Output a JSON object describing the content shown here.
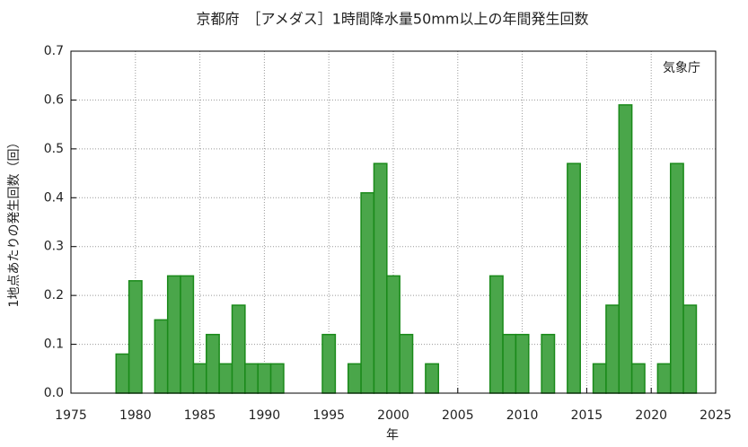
{
  "chart_data": {
    "type": "bar",
    "title": "京都府　［アメダス］1時間降水量50mm以上の年間発生回数",
    "y_label": "1地点あたりの発生回数（回）",
    "x_label": "年",
    "annotation": "気象庁",
    "x": [
      1979,
      1980,
      1982,
      1983,
      1984,
      1985,
      1986,
      1987,
      1988,
      1989,
      1990,
      1991,
      1995,
      1997,
      1998,
      1999,
      2000,
      2001,
      2003,
      2008,
      2009,
      2010,
      2012,
      2014,
      2016,
      2017,
      2018,
      2019,
      2021,
      2022,
      2023
    ],
    "values": [
      0.08,
      0.23,
      0.15,
      0.24,
      0.24,
      0.06,
      0.12,
      0.06,
      0.18,
      0.06,
      0.06,
      0.06,
      0.12,
      0.06,
      0.41,
      0.47,
      0.24,
      0.12,
      0.06,
      0.24,
      0.12,
      0.12,
      0.12,
      0.47,
      0.06,
      0.18,
      0.59,
      0.06,
      0.06,
      0.47,
      0.18
    ],
    "color": "#4aa64a",
    "xlim": [
      1975,
      2025
    ],
    "xticks": [
      1975,
      1980,
      1985,
      1990,
      1995,
      2000,
      2005,
      2010,
      2015,
      2020,
      2025
    ],
    "ylim": [
      0,
      0.7
    ],
    "yticks": [
      {
        "value": 0,
        "label": "0.0"
      },
      0.1,
      0.2,
      0.3,
      0.4,
      0.5,
      0.6,
      0.7
    ],
    "grid": true
  }
}
